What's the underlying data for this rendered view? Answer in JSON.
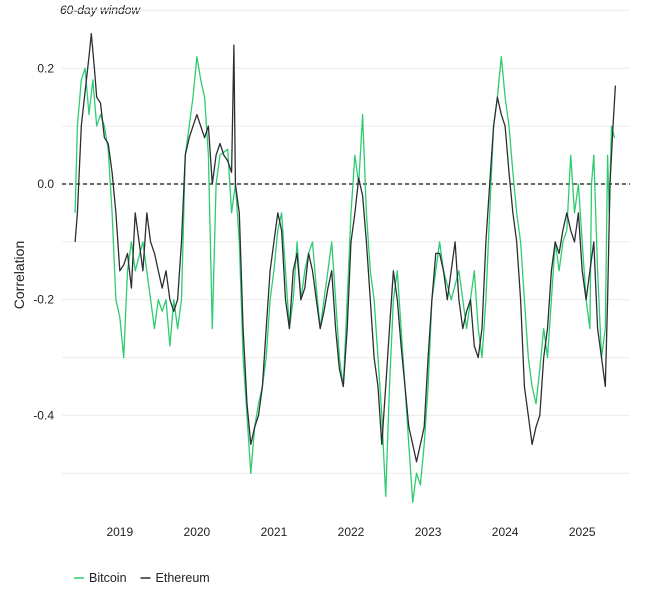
{
  "chart_data": {
    "type": "line",
    "subtitle": "60-day window",
    "ylabel": "Correlation",
    "ylim": [
      -0.56,
      0.28
    ],
    "xlim": [
      2018.25,
      2025.62
    ],
    "y_ticks": [
      0.2,
      0.0,
      -0.2,
      -0.4
    ],
    "y_tick_labels": [
      "0.2",
      "0.0",
      "-0.2",
      "-0.4"
    ],
    "x_ticks": [
      2019,
      2020,
      2021,
      2022,
      2023,
      2024,
      2025
    ],
    "x_tick_labels": [
      "2019",
      "2020",
      "2021",
      "2022",
      "2023",
      "2024",
      "2025"
    ],
    "reference_line": 0.0,
    "grid": true,
    "legend_position": "bottom-left",
    "series": [
      {
        "name": "Bitcoin",
        "color": "#2ecc71",
        "points": [
          [
            2018.42,
            -0.05
          ],
          [
            2018.45,
            0.1
          ],
          [
            2018.5,
            0.18
          ],
          [
            2018.55,
            0.2
          ],
          [
            2018.6,
            0.12
          ],
          [
            2018.65,
            0.18
          ],
          [
            2018.7,
            0.1
          ],
          [
            2018.75,
            0.12
          ],
          [
            2018.8,
            0.1
          ],
          [
            2018.85,
            0.06
          ],
          [
            2018.9,
            -0.05
          ],
          [
            2018.95,
            -0.2
          ],
          [
            2019.0,
            -0.23
          ],
          [
            2019.05,
            -0.3
          ],
          [
            2019.1,
            -0.15
          ],
          [
            2019.15,
            -0.1
          ],
          [
            2019.2,
            -0.15
          ],
          [
            2019.3,
            -0.1
          ],
          [
            2019.4,
            -0.2
          ],
          [
            2019.45,
            -0.25
          ],
          [
            2019.5,
            -0.2
          ],
          [
            2019.55,
            -0.22
          ],
          [
            2019.6,
            -0.2
          ],
          [
            2019.65,
            -0.28
          ],
          [
            2019.7,
            -0.2
          ],
          [
            2019.75,
            -0.25
          ],
          [
            2019.8,
            -0.2
          ],
          [
            2019.85,
            0.05
          ],
          [
            2019.9,
            0.1
          ],
          [
            2019.95,
            0.15
          ],
          [
            2020.0,
            0.22
          ],
          [
            2020.05,
            0.18
          ],
          [
            2020.1,
            0.15
          ],
          [
            2020.15,
            0.05
          ],
          [
            2020.2,
            -0.25
          ],
          [
            2020.25,
            0.0
          ],
          [
            2020.3,
            0.05
          ],
          [
            2020.4,
            0.06
          ],
          [
            2020.45,
            -0.05
          ],
          [
            2020.5,
            0.0
          ],
          [
            2020.55,
            -0.1
          ],
          [
            2020.6,
            -0.3
          ],
          [
            2020.65,
            -0.4
          ],
          [
            2020.7,
            -0.5
          ],
          [
            2020.75,
            -0.42
          ],
          [
            2020.8,
            -0.38
          ],
          [
            2020.85,
            -0.35
          ],
          [
            2020.9,
            -0.3
          ],
          [
            2020.95,
            -0.2
          ],
          [
            2021.0,
            -0.15
          ],
          [
            2021.05,
            -0.08
          ],
          [
            2021.1,
            -0.05
          ],
          [
            2021.15,
            -0.15
          ],
          [
            2021.2,
            -0.25
          ],
          [
            2021.25,
            -0.2
          ],
          [
            2021.3,
            -0.1
          ],
          [
            2021.35,
            -0.2
          ],
          [
            2021.4,
            -0.15
          ],
          [
            2021.45,
            -0.12
          ],
          [
            2021.5,
            -0.1
          ],
          [
            2021.55,
            -0.18
          ],
          [
            2021.6,
            -0.25
          ],
          [
            2021.65,
            -0.2
          ],
          [
            2021.7,
            -0.15
          ],
          [
            2021.75,
            -0.1
          ],
          [
            2021.8,
            -0.2
          ],
          [
            2021.85,
            -0.3
          ],
          [
            2021.9,
            -0.35
          ],
          [
            2021.95,
            -0.2
          ],
          [
            2022.0,
            -0.05
          ],
          [
            2022.05,
            0.05
          ],
          [
            2022.1,
            0.0
          ],
          [
            2022.15,
            0.12
          ],
          [
            2022.2,
            -0.05
          ],
          [
            2022.25,
            -0.15
          ],
          [
            2022.3,
            -0.2
          ],
          [
            2022.35,
            -0.3
          ],
          [
            2022.4,
            -0.4
          ],
          [
            2022.45,
            -0.54
          ],
          [
            2022.5,
            -0.35
          ],
          [
            2022.55,
            -0.2
          ],
          [
            2022.6,
            -0.15
          ],
          [
            2022.65,
            -0.25
          ],
          [
            2022.7,
            -0.35
          ],
          [
            2022.75,
            -0.45
          ],
          [
            2022.8,
            -0.55
          ],
          [
            2022.85,
            -0.5
          ],
          [
            2022.9,
            -0.52
          ],
          [
            2022.95,
            -0.45
          ],
          [
            2023.0,
            -0.35
          ],
          [
            2023.05,
            -0.2
          ],
          [
            2023.1,
            -0.15
          ],
          [
            2023.15,
            -0.1
          ],
          [
            2023.2,
            -0.15
          ],
          [
            2023.3,
            -0.2
          ],
          [
            2023.4,
            -0.15
          ],
          [
            2023.45,
            -0.2
          ],
          [
            2023.5,
            -0.25
          ],
          [
            2023.55,
            -0.2
          ],
          [
            2023.6,
            -0.15
          ],
          [
            2023.65,
            -0.25
          ],
          [
            2023.7,
            -0.3
          ],
          [
            2023.75,
            -0.2
          ],
          [
            2023.8,
            -0.05
          ],
          [
            2023.85,
            0.1
          ],
          [
            2023.9,
            0.15
          ],
          [
            2023.95,
            0.22
          ],
          [
            2024.0,
            0.15
          ],
          [
            2024.05,
            0.1
          ],
          [
            2024.1,
            0.02
          ],
          [
            2024.15,
            -0.05
          ],
          [
            2024.2,
            -0.1
          ],
          [
            2024.25,
            -0.2
          ],
          [
            2024.3,
            -0.3
          ],
          [
            2024.35,
            -0.35
          ],
          [
            2024.4,
            -0.38
          ],
          [
            2024.45,
            -0.32
          ],
          [
            2024.5,
            -0.25
          ],
          [
            2024.55,
            -0.3
          ],
          [
            2024.6,
            -0.2
          ],
          [
            2024.65,
            -0.1
          ],
          [
            2024.7,
            -0.15
          ],
          [
            2024.75,
            -0.1
          ],
          [
            2024.8,
            -0.08
          ],
          [
            2024.85,
            0.05
          ],
          [
            2024.9,
            -0.05
          ],
          [
            2024.95,
            0.0
          ],
          [
            2025.0,
            -0.1
          ],
          [
            2025.05,
            -0.2
          ],
          [
            2025.1,
            -0.25
          ],
          [
            2025.12,
            0.0
          ],
          [
            2025.15,
            0.05
          ],
          [
            2025.2,
            -0.15
          ],
          [
            2025.25,
            -0.3
          ],
          [
            2025.3,
            -0.25
          ],
          [
            2025.33,
            0.05
          ],
          [
            2025.35,
            -0.05
          ],
          [
            2025.38,
            0.1
          ],
          [
            2025.42,
            0.08
          ]
        ]
      },
      {
        "name": "Ethereum",
        "color": "#2b2f33",
        "points": [
          [
            2018.42,
            -0.1
          ],
          [
            2018.45,
            -0.05
          ],
          [
            2018.5,
            0.1
          ],
          [
            2018.55,
            0.16
          ],
          [
            2018.6,
            0.22
          ],
          [
            2018.63,
            0.26
          ],
          [
            2018.67,
            0.2
          ],
          [
            2018.7,
            0.15
          ],
          [
            2018.75,
            0.14
          ],
          [
            2018.8,
            0.08
          ],
          [
            2018.85,
            0.07
          ],
          [
            2018.9,
            0.02
          ],
          [
            2018.95,
            -0.05
          ],
          [
            2019.0,
            -0.15
          ],
          [
            2019.05,
            -0.14
          ],
          [
            2019.1,
            -0.12
          ],
          [
            2019.15,
            -0.18
          ],
          [
            2019.2,
            -0.05
          ],
          [
            2019.25,
            -0.1
          ],
          [
            2019.3,
            -0.15
          ],
          [
            2019.35,
            -0.05
          ],
          [
            2019.4,
            -0.1
          ],
          [
            2019.45,
            -0.12
          ],
          [
            2019.5,
            -0.15
          ],
          [
            2019.55,
            -0.18
          ],
          [
            2019.6,
            -0.15
          ],
          [
            2019.65,
            -0.2
          ],
          [
            2019.7,
            -0.22
          ],
          [
            2019.75,
            -0.2
          ],
          [
            2019.8,
            -0.1
          ],
          [
            2019.85,
            0.05
          ],
          [
            2019.9,
            0.08
          ],
          [
            2019.95,
            0.1
          ],
          [
            2020.0,
            0.12
          ],
          [
            2020.05,
            0.1
          ],
          [
            2020.1,
            0.08
          ],
          [
            2020.15,
            0.1
          ],
          [
            2020.2,
            0.0
          ],
          [
            2020.25,
            0.05
          ],
          [
            2020.3,
            0.07
          ],
          [
            2020.35,
            0.05
          ],
          [
            2020.4,
            0.04
          ],
          [
            2020.45,
            0.02
          ],
          [
            2020.48,
            0.24
          ],
          [
            2020.5,
            0.0
          ],
          [
            2020.55,
            -0.05
          ],
          [
            2020.6,
            -0.25
          ],
          [
            2020.65,
            -0.38
          ],
          [
            2020.7,
            -0.45
          ],
          [
            2020.75,
            -0.42
          ],
          [
            2020.8,
            -0.4
          ],
          [
            2020.85,
            -0.35
          ],
          [
            2020.9,
            -0.25
          ],
          [
            2020.95,
            -0.15
          ],
          [
            2021.0,
            -0.1
          ],
          [
            2021.05,
            -0.05
          ],
          [
            2021.1,
            -0.08
          ],
          [
            2021.15,
            -0.2
          ],
          [
            2021.2,
            -0.25
          ],
          [
            2021.25,
            -0.15
          ],
          [
            2021.3,
            -0.12
          ],
          [
            2021.35,
            -0.2
          ],
          [
            2021.4,
            -0.18
          ],
          [
            2021.45,
            -0.12
          ],
          [
            2021.5,
            -0.15
          ],
          [
            2021.55,
            -0.2
          ],
          [
            2021.6,
            -0.25
          ],
          [
            2021.65,
            -0.22
          ],
          [
            2021.7,
            -0.18
          ],
          [
            2021.75,
            -0.15
          ],
          [
            2021.8,
            -0.25
          ],
          [
            2021.85,
            -0.32
          ],
          [
            2021.9,
            -0.35
          ],
          [
            2021.95,
            -0.25
          ],
          [
            2022.0,
            -0.1
          ],
          [
            2022.05,
            -0.05
          ],
          [
            2022.1,
            0.01
          ],
          [
            2022.15,
            -0.02
          ],
          [
            2022.2,
            -0.1
          ],
          [
            2022.25,
            -0.2
          ],
          [
            2022.3,
            -0.3
          ],
          [
            2022.35,
            -0.35
          ],
          [
            2022.4,
            -0.45
          ],
          [
            2022.45,
            -0.35
          ],
          [
            2022.5,
            -0.25
          ],
          [
            2022.55,
            -0.15
          ],
          [
            2022.6,
            -0.2
          ],
          [
            2022.65,
            -0.28
          ],
          [
            2022.7,
            -0.35
          ],
          [
            2022.75,
            -0.42
          ],
          [
            2022.8,
            -0.45
          ],
          [
            2022.85,
            -0.48
          ],
          [
            2022.9,
            -0.45
          ],
          [
            2022.95,
            -0.42
          ],
          [
            2023.0,
            -0.3
          ],
          [
            2023.05,
            -0.2
          ],
          [
            2023.1,
            -0.12
          ],
          [
            2023.15,
            -0.12
          ],
          [
            2023.2,
            -0.15
          ],
          [
            2023.25,
            -0.2
          ],
          [
            2023.3,
            -0.15
          ],
          [
            2023.35,
            -0.1
          ],
          [
            2023.4,
            -0.2
          ],
          [
            2023.45,
            -0.25
          ],
          [
            2023.5,
            -0.22
          ],
          [
            2023.55,
            -0.2
          ],
          [
            2023.6,
            -0.28
          ],
          [
            2023.65,
            -0.3
          ],
          [
            2023.7,
            -0.25
          ],
          [
            2023.75,
            -0.1
          ],
          [
            2023.8,
            0.0
          ],
          [
            2023.85,
            0.1
          ],
          [
            2023.9,
            0.15
          ],
          [
            2023.95,
            0.12
          ],
          [
            2024.0,
            0.1
          ],
          [
            2024.05,
            0.02
          ],
          [
            2024.1,
            -0.05
          ],
          [
            2024.15,
            -0.1
          ],
          [
            2024.2,
            -0.2
          ],
          [
            2024.25,
            -0.35
          ],
          [
            2024.3,
            -0.4
          ],
          [
            2024.35,
            -0.45
          ],
          [
            2024.4,
            -0.42
          ],
          [
            2024.45,
            -0.4
          ],
          [
            2024.5,
            -0.3
          ],
          [
            2024.55,
            -0.25
          ],
          [
            2024.6,
            -0.15
          ],
          [
            2024.65,
            -0.1
          ],
          [
            2024.7,
            -0.12
          ],
          [
            2024.75,
            -0.08
          ],
          [
            2024.8,
            -0.05
          ],
          [
            2024.85,
            -0.08
          ],
          [
            2024.9,
            -0.1
          ],
          [
            2024.95,
            -0.05
          ],
          [
            2025.0,
            -0.15
          ],
          [
            2025.05,
            -0.2
          ],
          [
            2025.1,
            -0.15
          ],
          [
            2025.15,
            -0.1
          ],
          [
            2025.2,
            -0.25
          ],
          [
            2025.25,
            -0.3
          ],
          [
            2025.3,
            -0.35
          ],
          [
            2025.33,
            -0.2
          ],
          [
            2025.36,
            0.0
          ],
          [
            2025.4,
            0.1
          ],
          [
            2025.43,
            0.17
          ]
        ]
      }
    ]
  }
}
